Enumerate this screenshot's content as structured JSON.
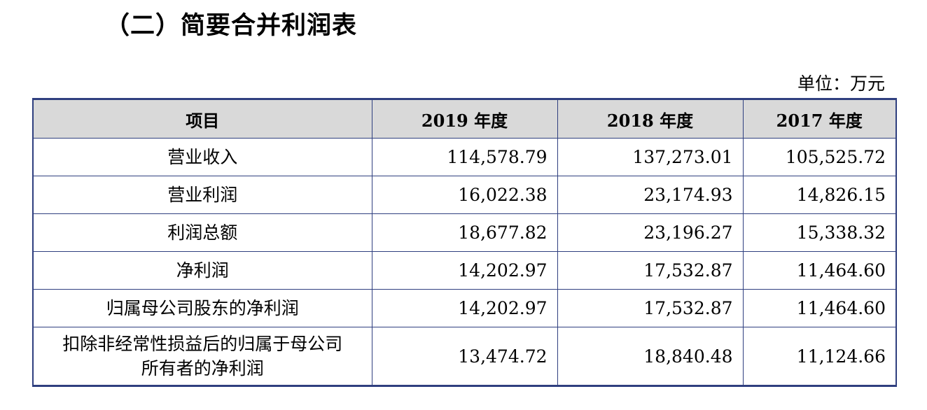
{
  "section_title": "（二）简要合并利润表",
  "unit_label": "单位：万元",
  "table": {
    "headers": [
      "项目",
      "2019 年度",
      "2018 年度",
      "2017 年度"
    ],
    "rows": [
      {
        "item": "营业收入",
        "values": [
          "114,578.79",
          "137,273.01",
          "105,525.72"
        ]
      },
      {
        "item": "营业利润",
        "values": [
          "16,022.38",
          "23,174.93",
          "14,826.15"
        ]
      },
      {
        "item": "利润总额",
        "values": [
          "18,677.82",
          "23,196.27",
          "15,338.32"
        ]
      },
      {
        "item": "净利润",
        "values": [
          "14,202.97",
          "17,532.87",
          "11,464.60"
        ]
      },
      {
        "item": "归属母公司股东的净利润",
        "values": [
          "14,202.97",
          "17,532.87",
          "11,464.60"
        ]
      },
      {
        "item_lines": [
          "扣除非经常性损益后的归属于母公司",
          "所有者的净利润"
        ],
        "values": [
          "13,474.72",
          "18,840.48",
          "11,124.66"
        ]
      }
    ]
  }
}
